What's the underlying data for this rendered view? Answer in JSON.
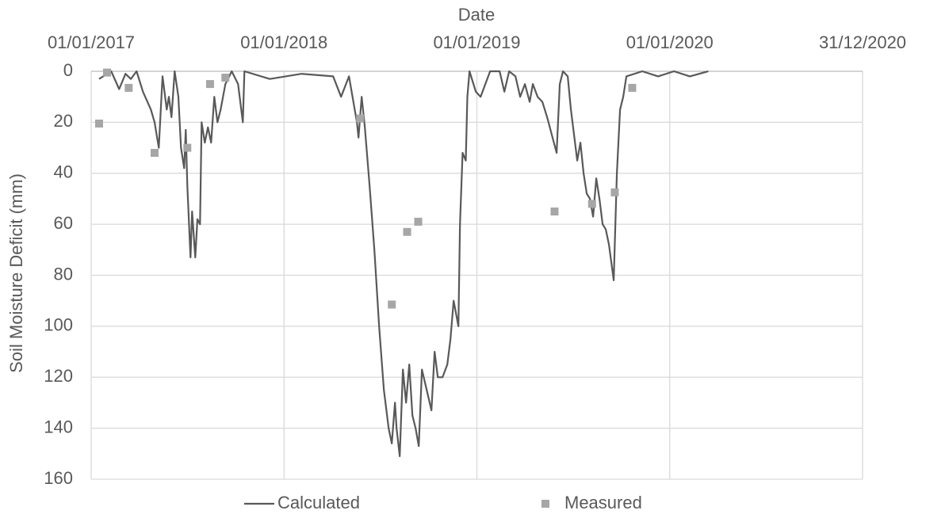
{
  "chart_data": {
    "type": "line",
    "x_label": "Date",
    "y_label": "Soil Moisture Deficit (mm)",
    "xlim": [
      "2017-01-01",
      "2020-12-31"
    ],
    "xticks": [
      {
        "value": "2017-01-01",
        "label": "01/01/2017"
      },
      {
        "value": "2018-01-01",
        "label": "01/01/2018"
      },
      {
        "value": "2019-01-01",
        "label": "01/01/2019"
      },
      {
        "value": "2020-01-01",
        "label": "01/01/2020"
      },
      {
        "value": "2020-12-31",
        "label": "31/12/2020"
      }
    ],
    "ylim": [
      0,
      160
    ],
    "yticks": [
      0,
      20,
      40,
      60,
      80,
      100,
      120,
      140,
      160
    ],
    "y_inverted": true,
    "x_axis_position": "top",
    "grid": true,
    "legend": "bottom",
    "series": [
      {
        "name": "Calculated",
        "color": "#595959",
        "style": "line",
        "x": [
          "2017-01-16",
          "2017-01-31",
          "2017-02-08",
          "2017-02-23",
          "2017-03-07",
          "2017-03-17",
          "2017-03-28",
          "2017-04-09",
          "2017-04-24",
          "2017-05-01",
          "2017-05-09",
          "2017-05-16",
          "2017-05-24",
          "2017-05-28",
          "2017-06-02",
          "2017-06-08",
          "2017-06-15",
          "2017-06-20",
          "2017-06-26",
          "2017-06-29",
          "2017-07-02",
          "2017-07-08",
          "2017-07-11",
          "2017-07-17",
          "2017-07-21",
          "2017-07-26",
          "2017-07-29",
          "2017-08-04",
          "2017-08-10",
          "2017-08-16",
          "2017-08-22",
          "2017-08-28",
          "2017-09-03",
          "2017-09-12",
          "2017-09-24",
          "2017-10-06",
          "2017-10-15",
          "2017-10-18",
          "2017-12-05",
          "2018-02-03",
          "2018-04-04",
          "2018-04-19",
          "2018-05-04",
          "2018-05-19",
          "2018-05-22",
          "2018-05-28",
          "2018-06-03",
          "2018-06-12",
          "2018-06-21",
          "2018-06-30",
          "2018-07-09",
          "2018-07-18",
          "2018-07-24",
          "2018-07-30",
          "2018-08-02",
          "2018-08-08",
          "2018-08-14",
          "2018-08-20",
          "2018-08-26",
          "2018-09-01",
          "2018-09-07",
          "2018-09-13",
          "2018-09-19",
          "2018-09-28",
          "2018-10-07",
          "2018-10-13",
          "2018-10-19",
          "2018-10-28",
          "2018-11-06",
          "2018-11-12",
          "2018-11-18",
          "2018-11-27",
          "2018-11-30",
          "2018-12-05",
          "2018-12-11",
          "2018-12-14",
          "2018-12-18",
          "2018-12-30",
          "2019-01-08",
          "2019-01-17",
          "2019-01-26",
          "2019-02-13",
          "2019-02-22",
          "2019-03-03",
          "2019-03-15",
          "2019-03-24",
          "2019-04-02",
          "2019-04-11",
          "2019-04-17",
          "2019-04-26",
          "2019-05-05",
          "2019-05-14",
          "2019-05-23",
          "2019-06-01",
          "2019-06-07",
          "2019-06-13",
          "2019-06-22",
          "2019-06-28",
          "2019-07-04",
          "2019-07-10",
          "2019-07-16",
          "2019-07-22",
          "2019-07-28",
          "2019-08-03",
          "2019-08-09",
          "2019-08-15",
          "2019-08-21",
          "2019-08-27",
          "2019-09-02",
          "2019-09-08",
          "2019-09-17",
          "2019-09-23",
          "2019-09-29",
          "2019-10-05",
          "2019-10-11",
          "2019-11-10",
          "2019-12-10",
          "2020-01-09",
          "2020-02-08",
          "2020-03-14"
        ],
        "values": [
          3,
          1,
          0,
          7,
          1,
          3,
          0,
          8,
          15,
          20,
          30,
          2,
          15,
          10,
          18,
          0,
          10,
          30,
          38,
          23,
          45,
          73,
          55,
          73,
          58,
          60,
          20,
          28,
          22,
          28,
          10,
          20,
          15,
          5,
          0,
          5,
          20,
          0,
          3,
          1,
          2,
          10,
          2,
          20,
          26,
          10,
          22,
          45,
          70,
          100,
          125,
          140,
          146,
          130,
          140,
          151,
          117,
          130,
          115,
          135,
          140,
          147,
          117,
          125,
          133,
          110,
          120,
          120,
          115,
          105,
          90,
          100,
          60,
          32,
          35,
          10,
          0,
          8,
          10,
          5,
          0,
          0,
          8,
          0,
          2,
          10,
          5,
          12,
          5,
          10,
          12,
          18,
          25,
          32,
          5,
          0,
          2,
          15,
          25,
          35,
          28,
          40,
          48,
          50,
          57,
          42,
          50,
          60,
          62,
          68,
          82,
          40,
          15,
          10,
          2,
          0,
          2,
          0,
          2,
          0
        ]
      },
      {
        "name": "Measured",
        "color": "#a6a6a6",
        "style": "marker",
        "x": [
          "2017-01-16",
          "2017-01-31",
          "2017-03-13",
          "2017-05-01",
          "2017-07-02",
          "2017-08-14",
          "2017-09-12",
          "2018-05-25",
          "2018-07-24",
          "2018-08-22",
          "2018-09-12",
          "2019-05-28",
          "2019-08-07",
          "2019-09-19",
          "2019-10-22"
        ],
        "values": [
          20.5,
          0.5,
          6.5,
          32,
          30,
          5,
          2.5,
          18.5,
          91.5,
          63,
          59,
          55,
          52,
          47.5,
          6.5
        ]
      }
    ]
  }
}
